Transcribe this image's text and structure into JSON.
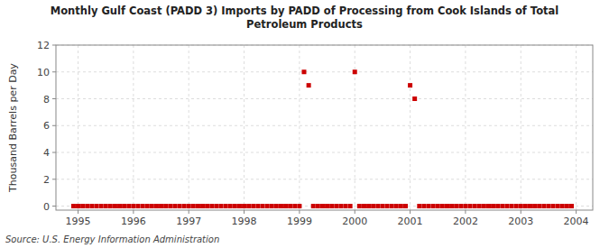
{
  "chart_data": {
    "type": "scatter",
    "title": "Monthly Gulf Coast (PADD 3) Imports by PADD of Processing from Cook Islands of Total\nPetroleum Products",
    "ylabel": "Thousand Barrels per Day",
    "annotations": [
      "Source: U.S. Energy Information Administration"
    ],
    "color": "#cc0000",
    "marker": "square",
    "grid": true,
    "xlim": [
      1994.6,
      2004.3
    ],
    "ylim": [
      -0.3,
      12
    ],
    "xticks": [
      1995,
      1996,
      1997,
      1998,
      1999,
      2000,
      2001,
      2002,
      2003,
      2004
    ],
    "yticks": [
      0,
      2,
      4,
      6,
      8,
      10,
      12
    ],
    "x": [
      1994.917,
      1995.0,
      1995.083,
      1995.167,
      1995.25,
      1995.333,
      1995.417,
      1995.5,
      1995.583,
      1995.667,
      1995.75,
      1995.833,
      1995.917,
      1996.0,
      1996.083,
      1996.167,
      1996.25,
      1996.333,
      1996.417,
      1996.5,
      1996.583,
      1996.667,
      1996.75,
      1996.833,
      1996.917,
      1997.0,
      1997.083,
      1997.167,
      1997.25,
      1997.333,
      1997.417,
      1997.5,
      1997.583,
      1997.667,
      1997.75,
      1997.833,
      1997.917,
      1998.0,
      1998.083,
      1998.167,
      1998.25,
      1998.333,
      1998.417,
      1998.5,
      1998.583,
      1998.667,
      1998.75,
      1998.833,
      1998.917,
      1999.0,
      1999.083,
      1999.167,
      1999.25,
      1999.333,
      1999.417,
      1999.5,
      1999.583,
      1999.667,
      1999.75,
      1999.833,
      1999.917,
      2000.0,
      2000.083,
      2000.167,
      2000.25,
      2000.333,
      2000.417,
      2000.5,
      2000.583,
      2000.667,
      2000.75,
      2000.833,
      2000.917,
      2001.0,
      2001.083,
      2001.167,
      2001.25,
      2001.333,
      2001.417,
      2001.5,
      2001.583,
      2001.667,
      2001.75,
      2001.833,
      2001.917,
      2002.0,
      2002.083,
      2002.167,
      2002.25,
      2002.333,
      2002.417,
      2002.5,
      2002.583,
      2002.667,
      2002.75,
      2002.833,
      2002.917,
      2003.0,
      2003.083,
      2003.167,
      2003.25,
      2003.333,
      2003.417,
      2003.5,
      2003.583,
      2003.667,
      2003.75,
      2003.833,
      2003.917
    ],
    "values": [
      0,
      0,
      0,
      0,
      0,
      0,
      0,
      0,
      0,
      0,
      0,
      0,
      0,
      0,
      0,
      0,
      0,
      0,
      0,
      0,
      0,
      0,
      0,
      0,
      0,
      0,
      0,
      0,
      0,
      0,
      0,
      0,
      0,
      0,
      0,
      0,
      0,
      0,
      0,
      0,
      0,
      0,
      0,
      0,
      0,
      0,
      0,
      0,
      0,
      0,
      10,
      9,
      0,
      0,
      0,
      0,
      0,
      0,
      0,
      0,
      0,
      10,
      0,
      0,
      0,
      0,
      0,
      0,
      0,
      0,
      0,
      0,
      0,
      9,
      8,
      0,
      0,
      0,
      0,
      0,
      0,
      0,
      0,
      0,
      0,
      0,
      0,
      0,
      0,
      0,
      0,
      0,
      0,
      0,
      0,
      0,
      0,
      0,
      0,
      0,
      0,
      0,
      0,
      0,
      0,
      0,
      0,
      0,
      0
    ]
  }
}
